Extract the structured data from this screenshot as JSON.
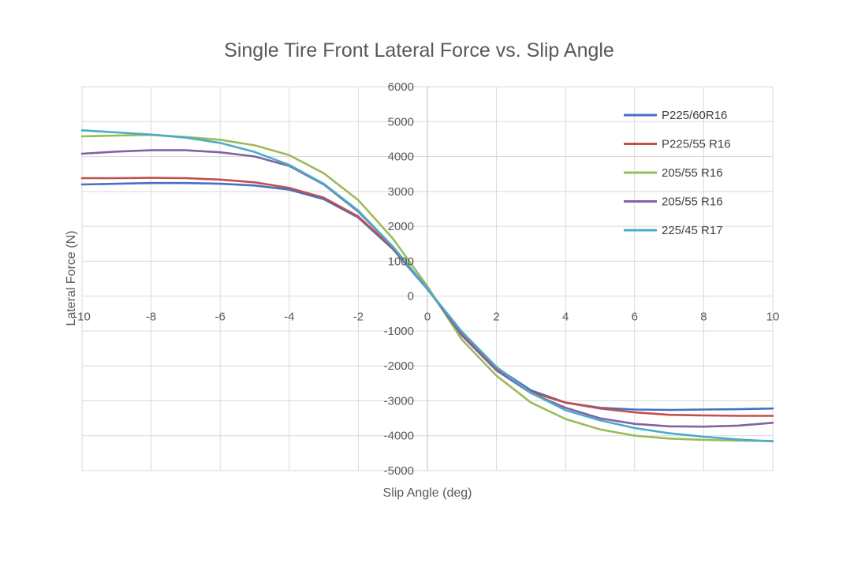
{
  "chart_data": {
    "type": "line",
    "title": "Single Tire Front Lateral Force vs. Slip Angle",
    "xlabel": "Slip Angle (deg)",
    "ylabel": "Lateral Force (N)",
    "xlim": [
      -10,
      10
    ],
    "ylim": [
      -5000,
      6000
    ],
    "x_ticks": [
      -10,
      -8,
      -6,
      -4,
      -2,
      0,
      2,
      4,
      6,
      8,
      10
    ],
    "x_tick_labels": [
      "-10",
      "-8",
      "-6",
      "-4",
      "-2",
      "0",
      "2",
      "4",
      "6",
      "8",
      "10"
    ],
    "y_ticks": [
      -5000,
      -4000,
      -3000,
      -2000,
      -1000,
      0,
      1000,
      2000,
      3000,
      4000,
      5000,
      6000
    ],
    "y_tick_labels": [
      "-5000",
      "-4000",
      "-3000",
      "-2000",
      "-1000",
      "0",
      "1000",
      "2000",
      "3000",
      "4000",
      "5000",
      "6000"
    ],
    "grid": true,
    "legend_position": "top-right",
    "x": [
      -10,
      -9,
      -8,
      -7,
      -6,
      -5,
      -4,
      -3,
      -2,
      -1,
      0,
      1,
      2,
      3,
      4,
      5,
      6,
      7,
      8,
      9,
      10
    ],
    "series": [
      {
        "name": "P225/60R16",
        "color": "#4472c4",
        "values": [
          3200,
          3220,
          3240,
          3240,
          3220,
          3170,
          3050,
          2780,
          2250,
          1350,
          200,
          -1050,
          -2050,
          -2700,
          -3050,
          -3200,
          -3250,
          -3260,
          -3250,
          -3240,
          -3220
        ]
      },
      {
        "name": "P225/55 R16",
        "color": "#c0504d",
        "values": [
          3380,
          3380,
          3390,
          3380,
          3340,
          3260,
          3100,
          2820,
          2280,
          1380,
          220,
          -1080,
          -2100,
          -2750,
          -3050,
          -3220,
          -3330,
          -3400,
          -3420,
          -3430,
          -3430
        ]
      },
      {
        "name": "205/55 R16",
        "color": "#9bbb59",
        "values": [
          4580,
          4600,
          4620,
          4560,
          4480,
          4320,
          4040,
          3520,
          2750,
          1650,
          280,
          -1250,
          -2280,
          -3050,
          -3520,
          -3820,
          -4000,
          -4080,
          -4120,
          -4140,
          -4150
        ]
      },
      {
        "name": "205/55 R16",
        "color": "#8064a2",
        "values": [
          4080,
          4140,
          4180,
          4180,
          4120,
          4000,
          3730,
          3200,
          2420,
          1420,
          220,
          -1130,
          -2130,
          -2780,
          -3200,
          -3500,
          -3660,
          -3730,
          -3740,
          -3710,
          -3630
        ]
      },
      {
        "name": "225/45 R17",
        "color": "#4bacc6",
        "values": [
          4750,
          4690,
          4630,
          4540,
          4390,
          4130,
          3760,
          3220,
          2450,
          1420,
          210,
          -1020,
          -2030,
          -2770,
          -3270,
          -3560,
          -3780,
          -3930,
          -4030,
          -4110,
          -4160
        ]
      }
    ]
  }
}
